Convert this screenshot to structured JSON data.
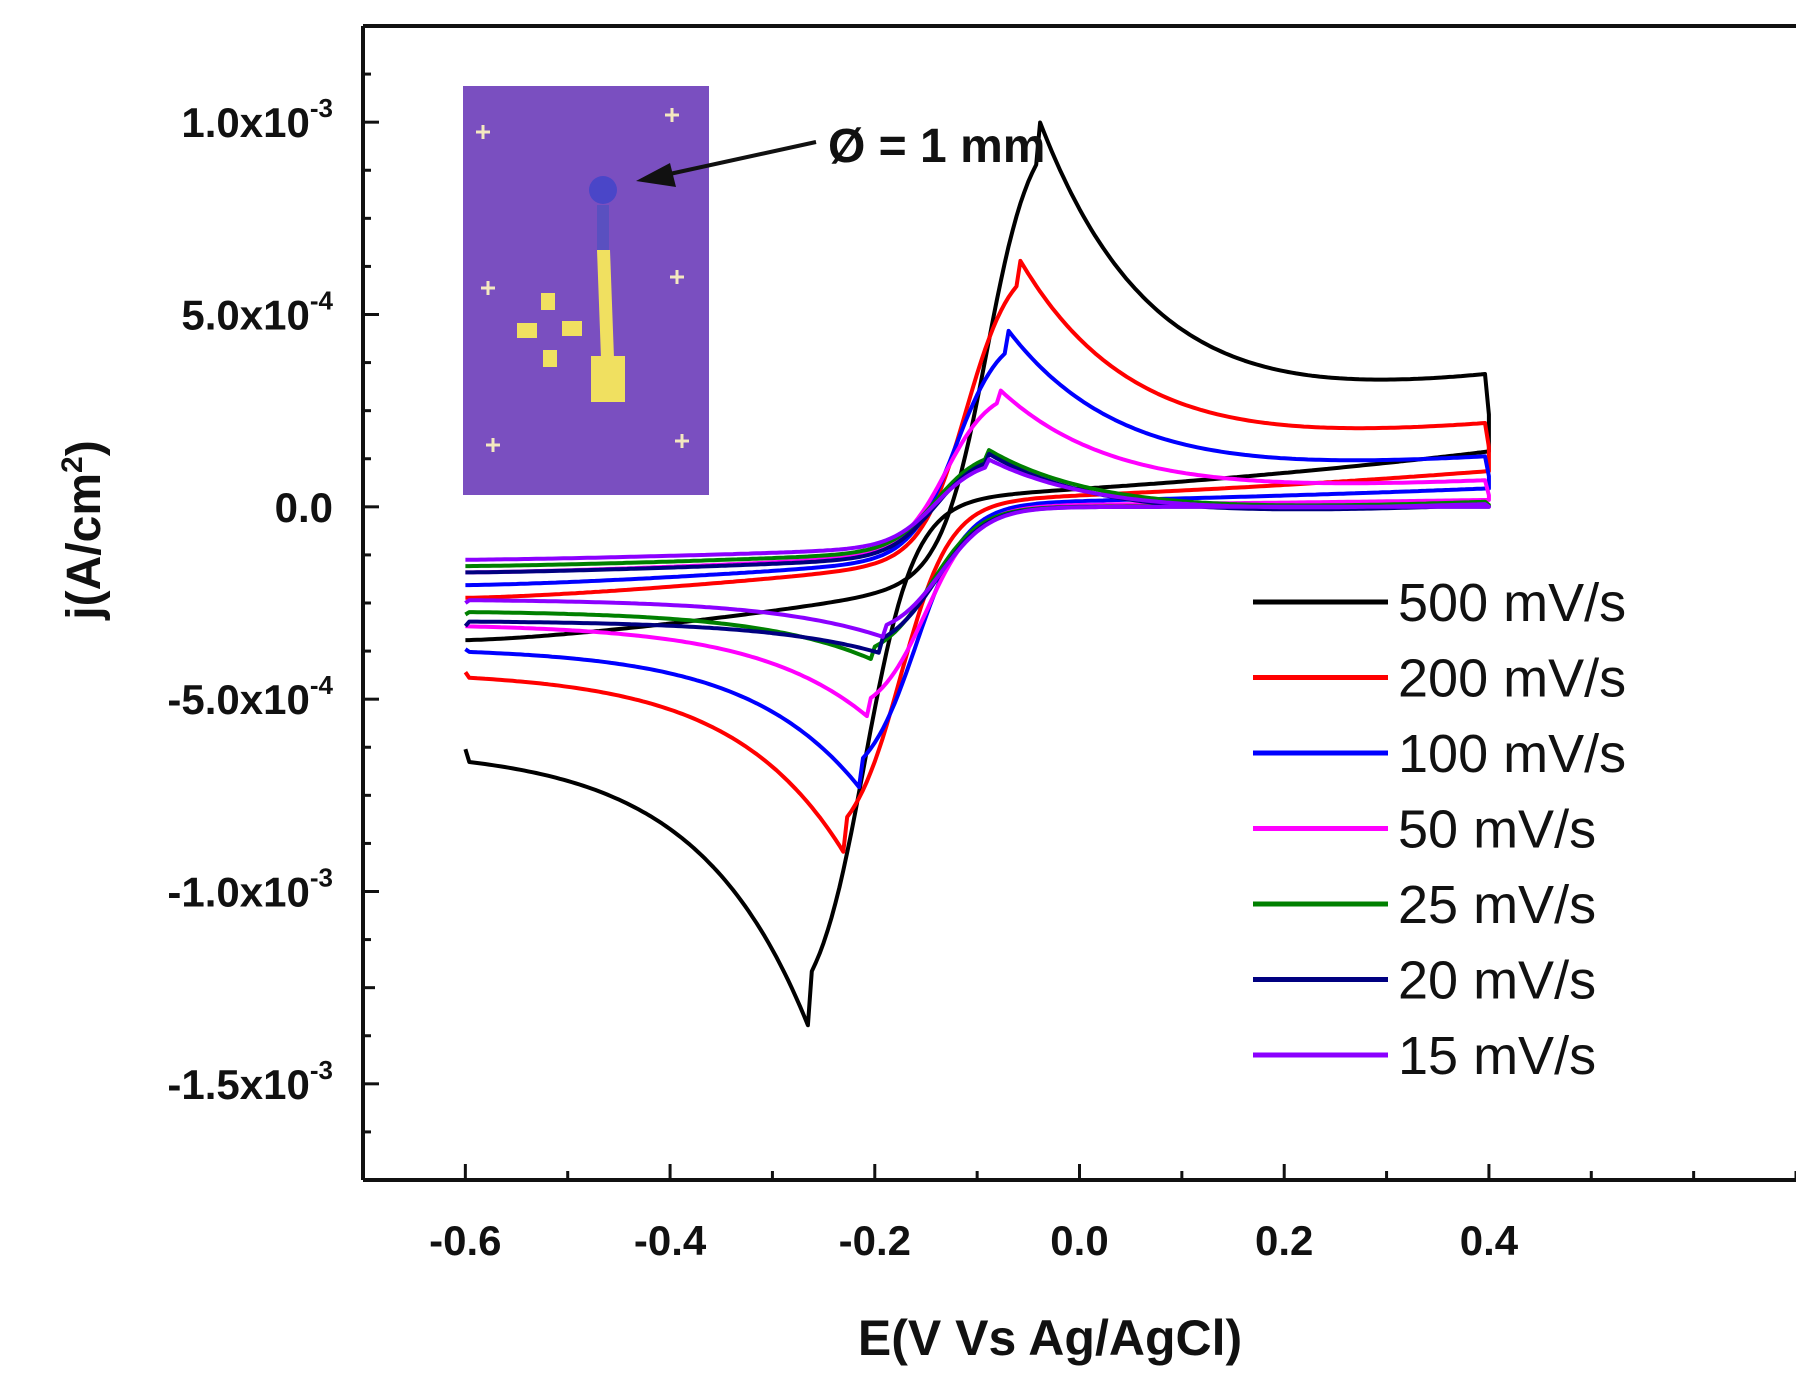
{
  "chart_data": {
    "type": "line",
    "title": "",
    "xlabel": "E(V Vs Ag/AgCl)",
    "ylabel": {
      "prefix": "j(A/cm",
      "sup": "2",
      "suffix": ")"
    },
    "xlim": [
      -0.7,
      0.7
    ],
    "ylim": [
      -0.00175,
      0.00125
    ],
    "x_ticks": [
      {
        "value": -0.6,
        "label": "-0.6"
      },
      {
        "value": -0.4,
        "label": "-0.4"
      },
      {
        "value": -0.2,
        "label": "-0.2"
      },
      {
        "value": 0.0,
        "label": "0.0"
      },
      {
        "value": 0.2,
        "label": "0.2"
      },
      {
        "value": 0.4,
        "label": "0.4"
      }
    ],
    "y_ticks": [
      {
        "value": 0.001,
        "mantissa": "1.0x10",
        "exp": "-3"
      },
      {
        "value": 0.0005,
        "mantissa": "5.0x10",
        "exp": "-4"
      },
      {
        "value": 0.0,
        "mantissa": "0.0",
        "exp": ""
      },
      {
        "value": -0.0005,
        "mantissa": "-5.0x10",
        "exp": "-4"
      },
      {
        "value": -0.001,
        "mantissa": "-1.0x10",
        "exp": "-3"
      },
      {
        "value": -0.0015,
        "mantissa": "-1.5x10",
        "exp": "-3"
      }
    ],
    "grid": false,
    "legend_position": "bottom-right",
    "inset_annotation": "Ø = 1 mm",
    "series": [
      {
        "name": "500 mV/s",
        "color": "#000000",
        "Epa": -0.04,
        "ipa": 0.00101,
        "Epc": -0.265,
        "ipc": -0.00135,
        "i_start": -0.00063,
        "i_end": 0.00024,
        "amp": 1.0
      },
      {
        "name": "200 mV/s",
        "color": "#ff0000",
        "Epa": -0.06,
        "ipa": 0.00065,
        "Epc": -0.23,
        "ipc": -0.0009,
        "i_start": -0.00043,
        "i_end": 0.000155,
        "amp": 0.7
      },
      {
        "name": "100 mV/s",
        "color": "#0000ff",
        "Epa": -0.07,
        "ipa": 0.00046,
        "Epc": -0.215,
        "ipc": -0.00073,
        "i_start": -0.00037,
        "i_end": 8e-05,
        "amp": 0.55
      },
      {
        "name": "50 mV/s",
        "color": "#ff00ff",
        "Epa": -0.08,
        "ipa": 0.00031,
        "Epc": -0.205,
        "ipc": -0.00055,
        "i_start": -0.00031,
        "i_end": 3e-05,
        "amp": 0.45
      },
      {
        "name": "25 mV/s",
        "color": "#008000",
        "Epa": -0.09,
        "ipa": 0.00015,
        "Epc": -0.2,
        "ipc": -0.0004,
        "i_start": -0.00028,
        "i_end": 5e-06,
        "amp": 0.38
      },
      {
        "name": "20 mV/s",
        "color": "#000080",
        "Epa": -0.09,
        "ipa": 0.00014,
        "Epc": -0.195,
        "ipc": -0.00038,
        "i_start": -0.00031,
        "i_end": 0.0,
        "amp": 0.36
      },
      {
        "name": "15 mV/s",
        "color": "#8b00ff",
        "Epa": -0.09,
        "ipa": 0.000125,
        "Epc": -0.19,
        "ipc": -0.00034,
        "i_start": -0.00025,
        "i_end": 0.0,
        "amp": 0.33
      }
    ],
    "x_range": [
      -0.6,
      0.4
    ]
  }
}
